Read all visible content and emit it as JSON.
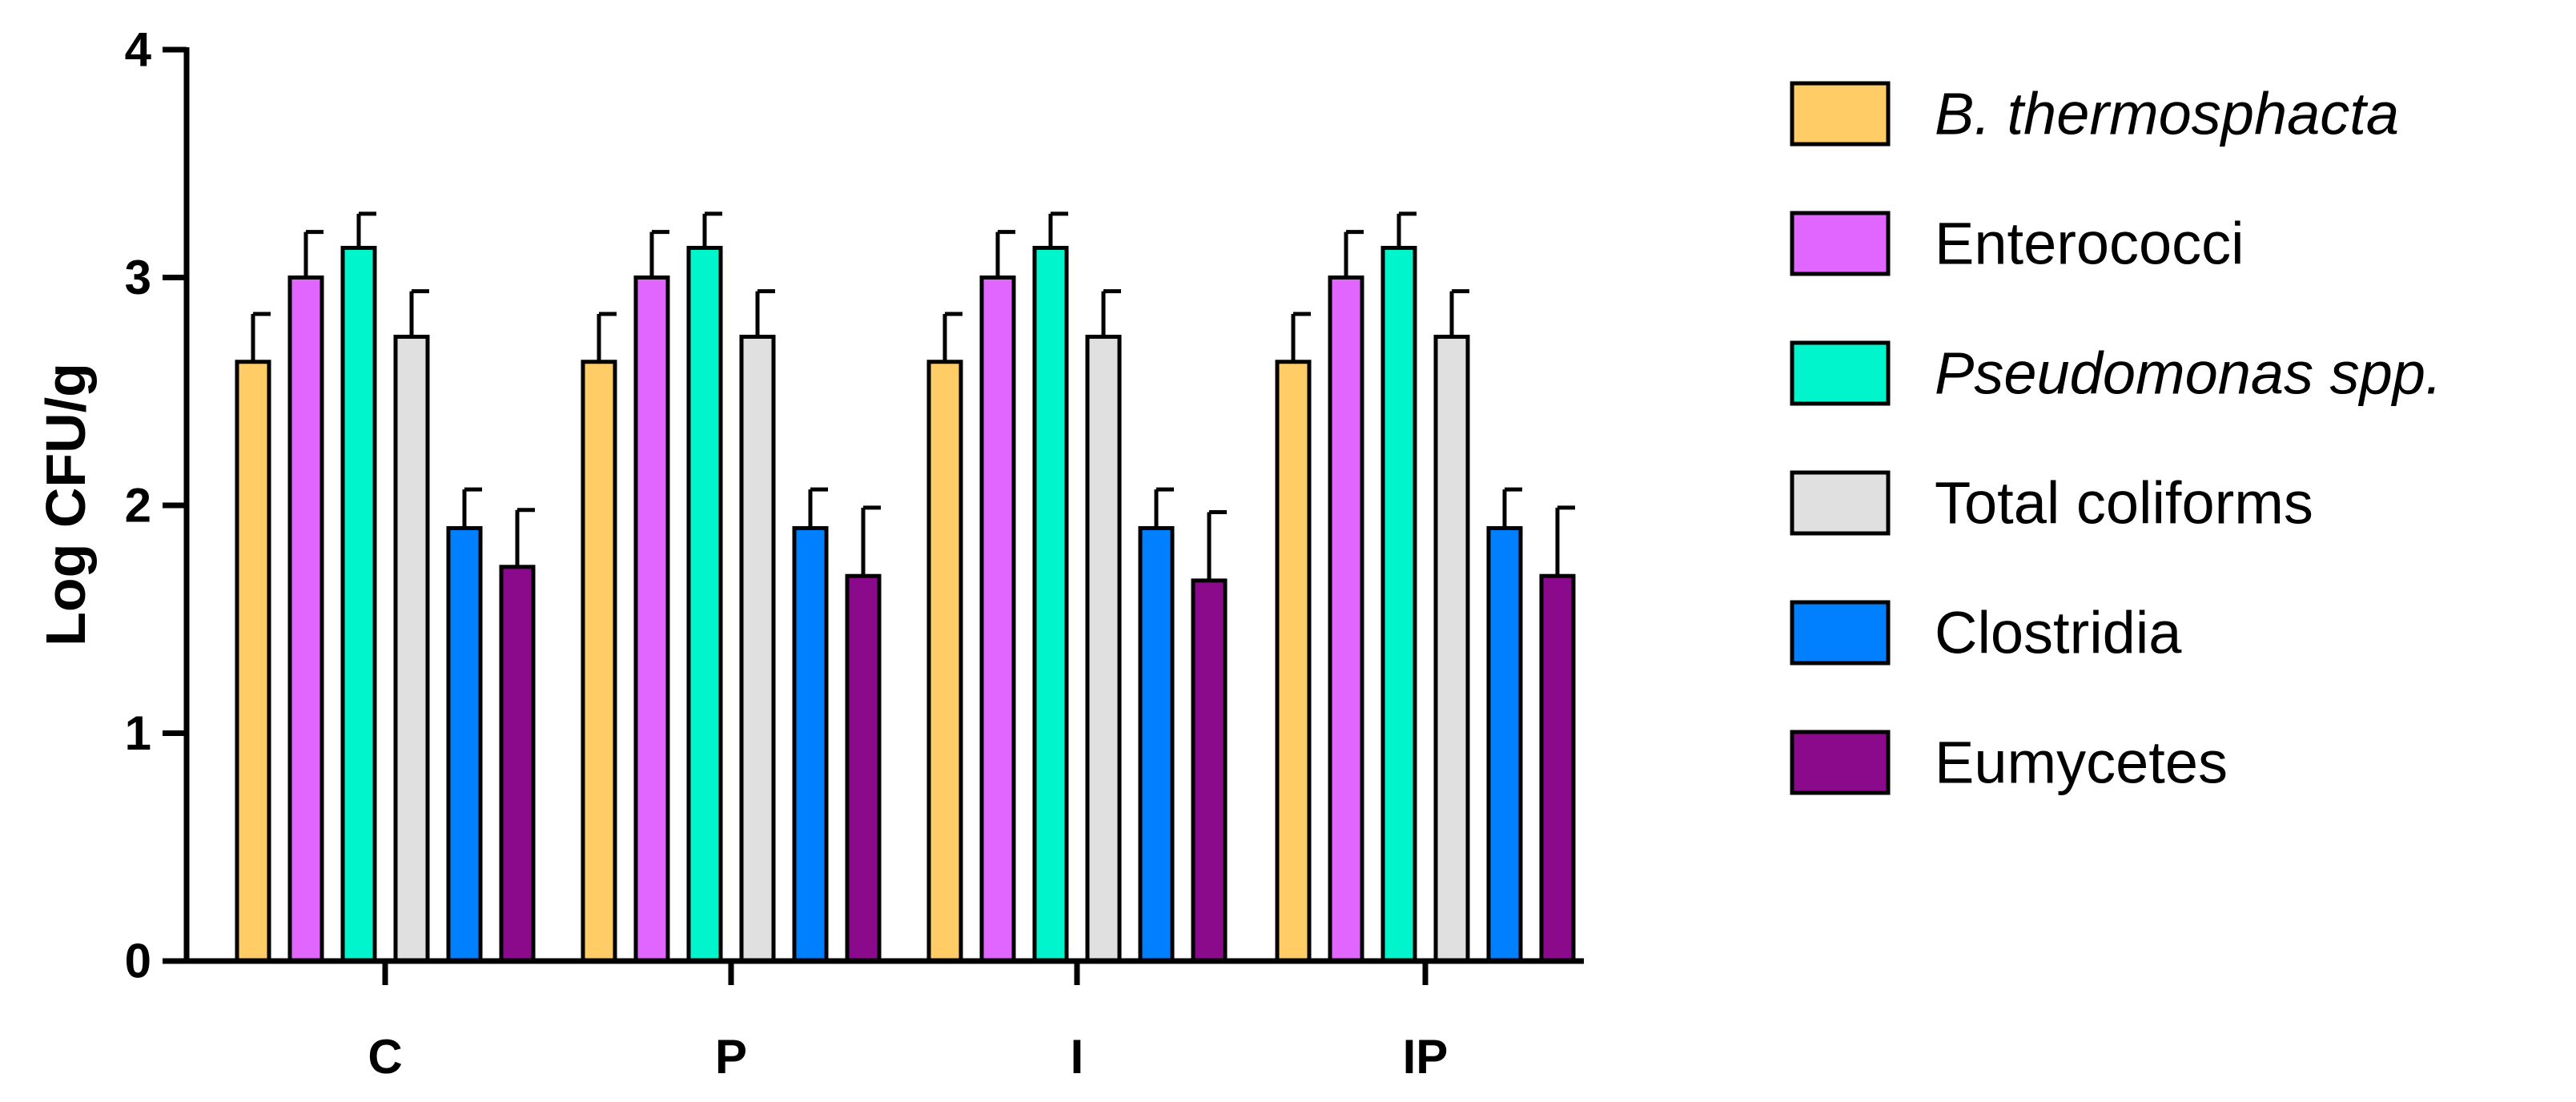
{
  "chart_data": {
    "type": "bar",
    "title": "",
    "xlabel": "",
    "ylabel": "Log CFU/g",
    "ylim": [
      0,
      4
    ],
    "yticks": [
      0,
      1,
      2,
      3,
      4
    ],
    "grid": false,
    "legend_position": "right",
    "categories": [
      "C",
      "P",
      "I",
      "IP"
    ],
    "series": [
      {
        "name": "B. thermosphacta",
        "italic": true,
        "color": "#FFCC66",
        "values": [
          2.63,
          2.63,
          2.63,
          2.63
        ],
        "errors": [
          0.21,
          0.21,
          0.21,
          0.21
        ]
      },
      {
        "name": "Enterococci",
        "italic": false,
        "color": "#E066FF",
        "values": [
          3.0,
          3.0,
          3.0,
          3.0
        ],
        "errors": [
          0.2,
          0.2,
          0.2,
          0.2
        ]
      },
      {
        "name": "Pseudomonas spp.",
        "italic": true,
        "color": "#00F5CC",
        "values": [
          3.13,
          3.13,
          3.13,
          3.13
        ],
        "errors": [
          0.15,
          0.15,
          0.15,
          0.15
        ]
      },
      {
        "name": "Total coliforms",
        "italic": false,
        "color": "#E0E0E0",
        "values": [
          2.74,
          2.74,
          2.74,
          2.74
        ],
        "errors": [
          0.2,
          0.2,
          0.2,
          0.2
        ]
      },
      {
        "name": "Clostridia",
        "italic": false,
        "color": "#0080FF",
        "values": [
          1.9,
          1.9,
          1.9,
          1.9
        ],
        "errors": [
          0.17,
          0.17,
          0.17,
          0.17
        ]
      },
      {
        "name": "Eumycetes",
        "italic": false,
        "color": "#8B0A8B",
        "values": [
          1.73,
          1.69,
          1.67,
          1.69
        ],
        "errors": [
          0.25,
          0.3,
          0.3,
          0.3
        ]
      }
    ]
  }
}
